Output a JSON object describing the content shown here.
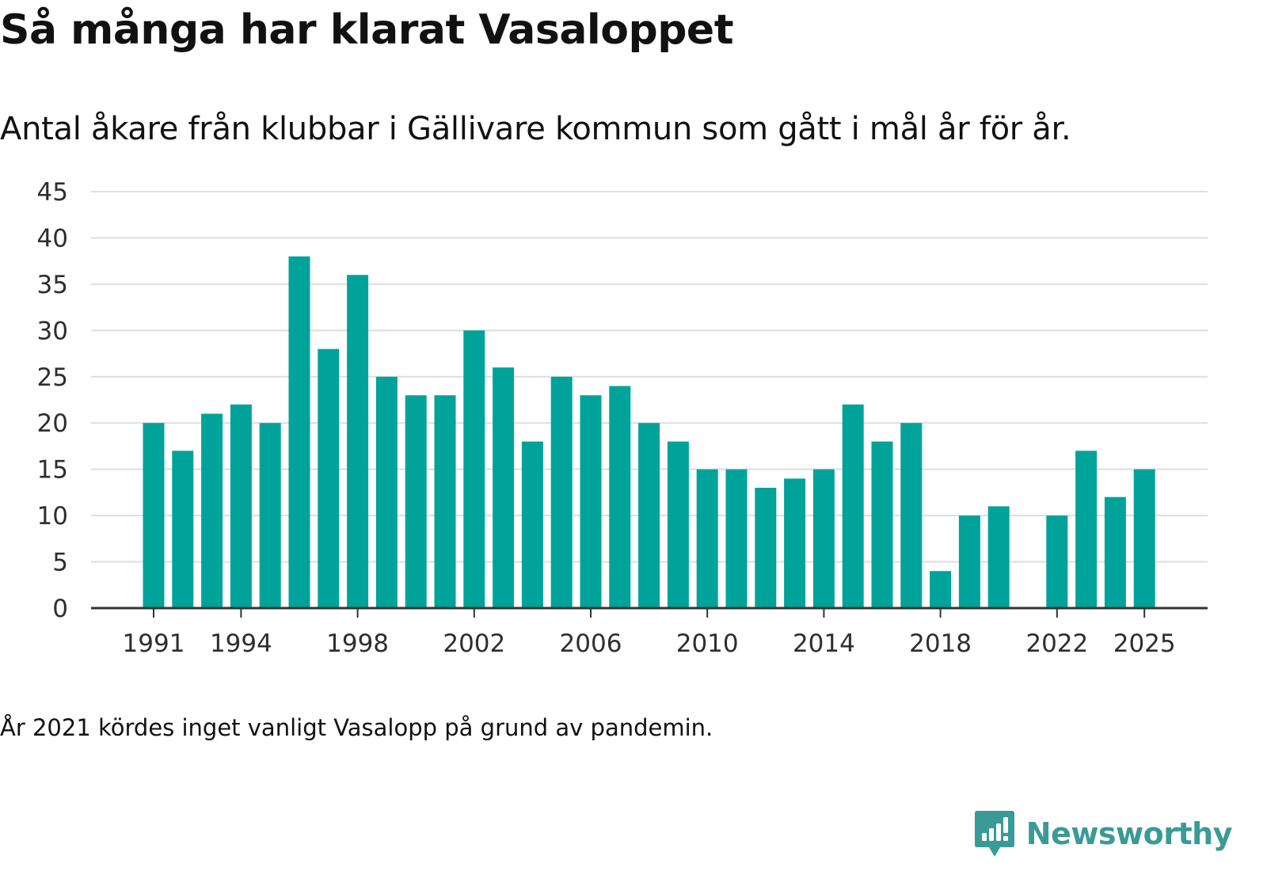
{
  "header": {
    "title": "Så många har klarat Vasaloppet",
    "subtitle": "Antal åkare från klubbar i Gällivare kommun som gått i mål år för år."
  },
  "footer": {
    "note": "År 2021 kördes inget vanligt Vasalopp på grund av pandemin."
  },
  "brand": {
    "name": "Newsworthy",
    "logo_icon": "newsworthy-logo-icon",
    "color": "#3a9a97"
  },
  "colors": {
    "bar": "#00a39a",
    "grid": "#dedede",
    "axis": "#333333",
    "text": "#2e2e2e"
  },
  "chart_data": {
    "type": "bar",
    "title": "Så många har klarat Vasaloppet",
    "xlabel": "",
    "ylabel": "",
    "ylim": [
      0,
      45
    ],
    "yticks": [
      0,
      5,
      10,
      15,
      20,
      25,
      30,
      35,
      40,
      45
    ],
    "xticks": [
      1991,
      1994,
      1998,
      2002,
      2006,
      2010,
      2014,
      2018,
      2022,
      2025
    ],
    "grid": true,
    "categories": [
      1991,
      1992,
      1993,
      1994,
      1995,
      1996,
      1997,
      1998,
      1999,
      2000,
      2001,
      2002,
      2003,
      2004,
      2005,
      2006,
      2007,
      2008,
      2009,
      2010,
      2011,
      2012,
      2013,
      2014,
      2015,
      2016,
      2017,
      2018,
      2019,
      2020,
      2021,
      2022,
      2023,
      2024,
      2025
    ],
    "values": [
      20,
      17,
      21,
      22,
      20,
      38,
      28,
      36,
      25,
      23,
      23,
      30,
      26,
      18,
      25,
      23,
      24,
      20,
      18,
      15,
      15,
      13,
      14,
      15,
      22,
      18,
      20,
      4,
      10,
      11,
      null,
      10,
      17,
      12,
      15
    ]
  }
}
